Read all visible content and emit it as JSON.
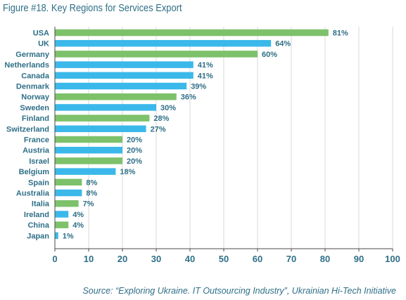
{
  "figure_title": "Figure #18. Key Regions for Services Export",
  "source_note": "Source: “Exploring Ukraine. IT Outsourcing Industry”, Ukrainian Hi-Tech Initiative",
  "colors": {
    "green": "#7dc16a",
    "blue": "#3bb8ea",
    "text": "#2f6f87",
    "grid": "#d9d9d9",
    "axis": "#4a4a4a"
  },
  "chart_data": {
    "type": "bar",
    "orientation": "horizontal",
    "title": "Figure #18. Key Regions for Services Export",
    "xlabel": "",
    "ylabel": "",
    "xlim": [
      0,
      100
    ],
    "xticks": [
      0,
      10,
      20,
      30,
      40,
      50,
      60,
      70,
      80,
      90,
      100
    ],
    "grid": "vertical",
    "value_suffix": "%",
    "categories": [
      "USA",
      "UK",
      "Germany",
      "Netherlands",
      "Canada",
      "Denmark",
      "Norway",
      "Sweden",
      "Finland",
      "Switzerland",
      "France",
      "Austria",
      "Israel",
      "Belgium",
      "Spain",
      "Australia",
      "Italia",
      "Ireland",
      "China",
      "Japan"
    ],
    "values": [
      81,
      64,
      60,
      41,
      41,
      39,
      36,
      30,
      28,
      27,
      20,
      20,
      20,
      18,
      8,
      8,
      7,
      4,
      4,
      1
    ],
    "value_labels": [
      "81%",
      "64%",
      "60%",
      "41%",
      "41%",
      "39%",
      "36%",
      "30%",
      "28%",
      "27%",
      "20%",
      "20%",
      "20%",
      "18%",
      "8%",
      "8%",
      "7%",
      "4%",
      "4%",
      "1%"
    ],
    "bar_colors": [
      "green",
      "blue",
      "green",
      "blue",
      "blue",
      "blue",
      "green",
      "blue",
      "green",
      "blue",
      "green",
      "blue",
      "green",
      "blue",
      "green",
      "blue",
      "green",
      "blue",
      "green",
      "blue"
    ]
  }
}
